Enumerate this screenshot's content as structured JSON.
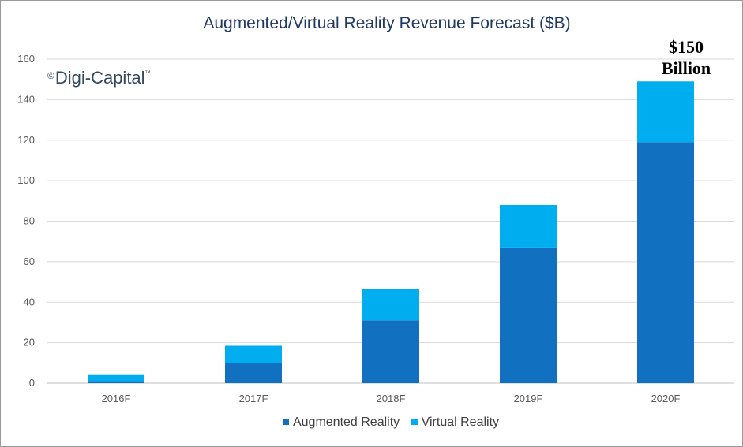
{
  "chart_data": {
    "type": "bar",
    "stacked": true,
    "title": "Augmented/Virtual Reality Revenue Forecast ($B)",
    "categories": [
      "2016F",
      "2017F",
      "2018F",
      "2019F",
      "2020F"
    ],
    "series": [
      {
        "name": "Augmented Reality",
        "color": "#1170c0",
        "values": [
          1,
          10,
          31,
          67,
          119
        ]
      },
      {
        "name": "Virtual Reality",
        "color": "#00adef",
        "values": [
          3,
          8.5,
          15.5,
          21,
          30
        ]
      }
    ],
    "ylim": [
      0,
      160
    ],
    "yticks": [
      "0",
      "20",
      "40",
      "60",
      "80",
      "100",
      "120",
      "140",
      "160"
    ],
    "grid": true,
    "legend_position": "bottom",
    "annotations": [
      {
        "text_line1": "$150",
        "text_line2": "Billion",
        "category": "2020F"
      }
    ],
    "watermark": {
      "copyright": "©",
      "name": "Digi-Capital",
      "trademark": "™"
    }
  }
}
